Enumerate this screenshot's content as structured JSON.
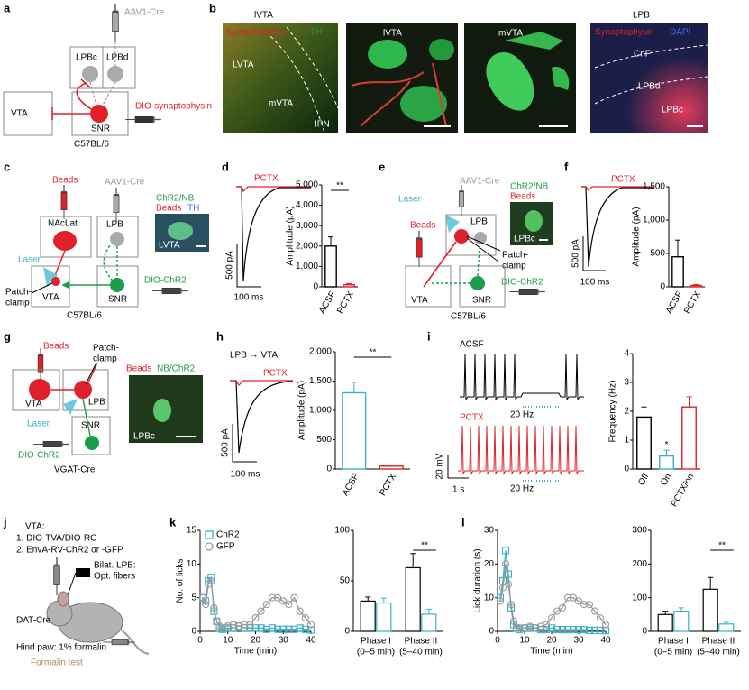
{
  "panel_labels": [
    "a",
    "b",
    "c",
    "d",
    "e",
    "f",
    "g",
    "h",
    "i",
    "j",
    "k",
    "l"
  ],
  "a": {
    "aav": "AAV1-Cre",
    "lpbc": "LPBc",
    "lpbd": "LPBd",
    "vta": "VTA",
    "snr": "SNR",
    "dio": "DIO-synaptophysin",
    "mouse": "C57BL/6"
  },
  "b": {
    "images": [
      {
        "title": "lVTA",
        "stains": [
          "Synaptophysin",
          "TH"
        ],
        "regions": [
          "LVTA",
          "mVTA",
          "IPN"
        ]
      },
      {
        "title": "lVTA"
      },
      {
        "title": "mVTA"
      },
      {
        "title": "LPB",
        "stains": [
          "Synaptophysin",
          "DAPI"
        ],
        "regions": [
          "CnF",
          "LPBd",
          "LPBc"
        ]
      }
    ]
  },
  "c": {
    "beads": "Beads",
    "aav": "AAV1-Cre",
    "naclat": "NAcLat",
    "lpb": "LPB",
    "laser": "Laser",
    "patch": [
      "Patch-",
      "clamp"
    ],
    "vta": "VTA",
    "snr": "SNR",
    "dio": "DIO-ChR2",
    "mouse": "C57BL/6",
    "inset": {
      "stains": [
        "ChR2/NB",
        "Beads",
        "TH"
      ],
      "region": "LVTA"
    }
  },
  "d": {
    "drug": "PCTX",
    "scale_y": "500 pA",
    "scale_x": "100 ms",
    "bars": {
      "type": "bar",
      "ylabel": "Amplitude (pA)",
      "categories": [
        "ACSF",
        "PCTX"
      ],
      "values": [
        2000,
        100
      ],
      "errors": [
        450,
        60
      ],
      "colors": [
        "#000000",
        "#e0202a"
      ],
      "ylim": [
        0,
        5000
      ],
      "yticks": [
        0,
        {
          "value": 1000,
          "label": "1,000"
        },
        {
          "value": 2000,
          "label": "2,000"
        },
        {
          "value": 3000,
          "label": "3,000"
        },
        {
          "value": 4000,
          "label": "4,000"
        },
        {
          "value": 5000,
          "label": "5,000"
        }
      ],
      "significance": "**"
    }
  },
  "e": {
    "aav": "AAV1-Cre",
    "laser": "Laser",
    "beads": "Beads",
    "lpb": "LPB",
    "patch": [
      "Patch-",
      "clamp"
    ],
    "vta": "VTA",
    "snr": "SNR",
    "dio": "DIO-ChR2",
    "mouse": "C57BL/6",
    "inset": {
      "stains": [
        "ChR2/NB",
        "Beads"
      ],
      "region": "LPBc"
    }
  },
  "f": {
    "drug": "PCTX",
    "scale_y": "500 pA",
    "scale_x": "100 ms",
    "bars": {
      "type": "bar",
      "ylabel": "Amplitude (pA)",
      "categories": [
        "ACSF",
        "PCTX"
      ],
      "values": [
        450,
        20
      ],
      "errors": [
        250,
        15
      ],
      "colors": [
        "#000000",
        "#e0202a"
      ],
      "ylim": [
        0,
        1500
      ],
      "yticks": [
        0,
        500,
        {
          "value": 1000,
          "label": "1,000"
        },
        {
          "value": 1500,
          "label": "1,500"
        }
      ]
    }
  },
  "g": {
    "beads": "Beads",
    "patch": [
      "Patch-",
      "clamp"
    ],
    "vta": "VTA",
    "lpb": "LPB",
    "laser": "Laser",
    "snr": "SNR",
    "dio": "DIO-ChR2",
    "mouse": "VGAT-Cre",
    "inset": {
      "stains": [
        "Beads",
        "NB/ChR2"
      ],
      "region": "LPBc"
    }
  },
  "h": {
    "title": "LPB → VTA",
    "drug": "PCTX",
    "scale_y": "500 pA",
    "scale_x": "100 ms",
    "bars": {
      "type": "bar",
      "ylabel": "Amplitude (pA)",
      "categories": [
        "ACSF",
        "PCTX"
      ],
      "values": [
        1300,
        50
      ],
      "errors": [
        180,
        20
      ],
      "colors": [
        "#3ab0c8",
        "#e0202a"
      ],
      "ylim": [
        0,
        2000
      ],
      "yticks": [
        0,
        500,
        {
          "value": 1000,
          "label": "1,000"
        },
        {
          "value": 1500,
          "label": "1,500"
        },
        {
          "value": 2000,
          "label": "2,000"
        }
      ],
      "significance": "**"
    }
  },
  "i": {
    "conditions": [
      "ACSF",
      "PCTX"
    ],
    "stim": [
      "20 Hz",
      "20 Hz"
    ],
    "scale_y": "20 mV",
    "scale_x": "1 s",
    "bars": {
      "type": "bar",
      "ylabel": "Frequency (Hz)",
      "categories": [
        "Off",
        "On",
        "PCTX/on"
      ],
      "values": [
        1.8,
        0.45,
        2.15
      ],
      "errors": [
        0.35,
        0.2,
        0.35
      ],
      "colors": [
        "#000000",
        "#3ab0c8",
        "#e0202a"
      ],
      "ylim": [
        0,
        4
      ],
      "yticks": [
        0,
        1,
        2,
        3,
        4
      ],
      "significance": "*"
    }
  },
  "j": {
    "lines": [
      "VTA:",
      "1. DIO-TVA/DIO-RG",
      "2. EnvA-RV-ChR2 or -GFP"
    ],
    "fiber": [
      "Bilat. LPB:",
      "Opt. fibers"
    ],
    "mouse": "DAT-Cre",
    "injection": "Hind paw: 1% formalin",
    "test": "Formalin test"
  },
  "k": {
    "time": {
      "type": "line",
      "xlabel": "Time (min)",
      "ylabel": "No. of licks",
      "x": [
        1,
        2,
        3,
        4,
        5,
        6,
        7,
        8,
        10,
        12,
        14,
        16,
        18,
        20,
        22,
        24,
        26,
        28,
        30,
        32,
        34,
        36,
        38,
        40
      ],
      "xlim": [
        0,
        40
      ],
      "xticks": [
        0,
        10,
        20,
        30,
        40
      ],
      "ylim": [
        0,
        15
      ],
      "yticks": [
        0,
        5,
        10,
        15
      ],
      "legend": "top-left",
      "series": [
        {
          "name": "ChR2",
          "color": "#3ab0c8",
          "marker": "square",
          "values": [
            5,
            4.5,
            7.5,
            8,
            3,
            1.5,
            0.5,
            0.3,
            0.5,
            0.5,
            0.8,
            0.5,
            0.5,
            0.5,
            0.5,
            0.3,
            0.5,
            0.3,
            0.3,
            0.3,
            0.3,
            0.5,
            0.3,
            0.2
          ]
        },
        {
          "name": "GFP",
          "color": "#999999",
          "marker": "circle",
          "values": [
            5,
            4,
            7,
            7.5,
            3.5,
            1.5,
            0.8,
            0.5,
            0.8,
            1,
            0.8,
            1,
            1,
            2,
            3,
            4,
            5,
            5,
            4.5,
            4,
            5,
            3,
            2,
            1
          ]
        }
      ]
    },
    "phases": {
      "type": "grouped-bar",
      "groups": [
        {
          "name": "Phase I",
          "range": "(0–5 min)"
        },
        {
          "name": "Phase II",
          "range": "(5–40 min)"
        }
      ],
      "ylim": [
        0,
        100
      ],
      "yticks": [
        0,
        50,
        100
      ],
      "significance": "**",
      "series": [
        {
          "color": "#000000",
          "values": [
            30,
            63
          ],
          "errors": [
            4,
            14
          ]
        },
        {
          "color": "#3ab0c8",
          "values": [
            28,
            17
          ],
          "errors": [
            5,
            5
          ]
        }
      ]
    }
  },
  "l": {
    "time": {
      "type": "line",
      "xlabel": "Time (min)",
      "ylabel": "Lick duration (s)",
      "x": [
        1,
        2,
        3,
        4,
        5,
        6,
        7,
        8,
        10,
        12,
        14,
        16,
        18,
        20,
        22,
        24,
        26,
        28,
        30,
        32,
        34,
        36,
        38,
        40
      ],
      "xlim": [
        0,
        40
      ],
      "xticks": [
        0,
        10,
        20,
        30,
        40
      ],
      "ylim": [
        0,
        30
      ],
      "yticks": [
        0,
        10,
        20,
        30
      ],
      "series": [
        {
          "color": "#3ab0c8",
          "marker": "square",
          "values": [
            10,
            15,
            24,
            17,
            7,
            2,
            1,
            0.5,
            1,
            1,
            1,
            0.5,
            0.5,
            1,
            0.5,
            0.5,
            0.5,
            0.5,
            0.5,
            0.5,
            0.3,
            0.3,
            0.3,
            0.2
          ]
        },
        {
          "color": "#999999",
          "marker": "circle",
          "values": [
            9,
            13,
            20,
            14,
            8,
            3,
            1,
            1,
            1,
            1.5,
            1,
            1.5,
            2,
            4,
            6,
            7,
            10,
            10,
            9,
            8,
            8,
            6,
            4,
            2
          ]
        }
      ]
    },
    "phases": {
      "type": "grouped-bar",
      "groups": [
        {
          "name": "Phase I",
          "range": "(0–5 min)"
        },
        {
          "name": "Phase II",
          "range": "(5–40 min)"
        }
      ],
      "ylim": [
        0,
        300
      ],
      "yticks": [
        0,
        100,
        200,
        300
      ],
      "significance": "**",
      "series": [
        {
          "color": "#000000",
          "values": [
            50,
            125
          ],
          "errors": [
            10,
            35
          ]
        },
        {
          "color": "#3ab0c8",
          "values": [
            60,
            22
          ],
          "errors": [
            10,
            5
          ]
        }
      ]
    }
  }
}
